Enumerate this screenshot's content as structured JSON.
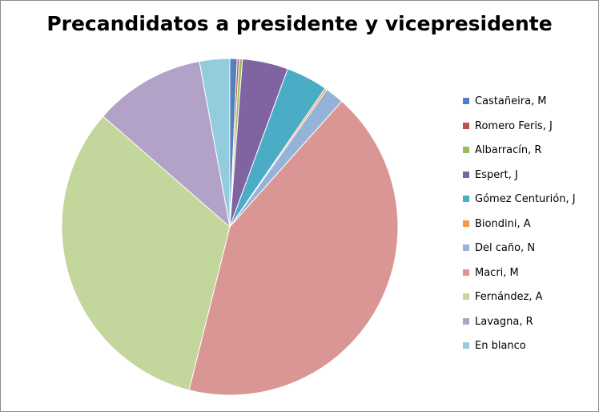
{
  "chart_data": {
    "type": "pie",
    "title": "Precandidatos a presidente y vicepresidente",
    "legend_position": "right",
    "slices": [
      {
        "label": "Castañeira, M",
        "value": 0.7,
        "color": "#4F81BD"
      },
      {
        "label": "Romero Feris, J",
        "value": 0.2,
        "color": "#C0504D"
      },
      {
        "label": "Albarracín, R",
        "value": 0.3,
        "color": "#9BBB59"
      },
      {
        "label": "Espert, J",
        "value": 4.4,
        "color": "#8064A2"
      },
      {
        "label": "Gómez Centurión, J",
        "value": 4.0,
        "color": "#4BACC6"
      },
      {
        "label": "Biondini, A",
        "value": 0.2,
        "color": "#F79646"
      },
      {
        "label": "Del caño, N",
        "value": 1.8,
        "color": "#95B3D7"
      },
      {
        "label": "Macri, M",
        "value": 42.3,
        "color": "#D99694"
      },
      {
        "label": "Fernández, A",
        "value": 32.5,
        "color": "#C3D69B"
      },
      {
        "label": "Lavagna, R",
        "value": 10.7,
        "color": "#B3A2C7"
      },
      {
        "label": "En blanco",
        "value": 2.9,
        "color": "#93CDDD"
      }
    ]
  }
}
